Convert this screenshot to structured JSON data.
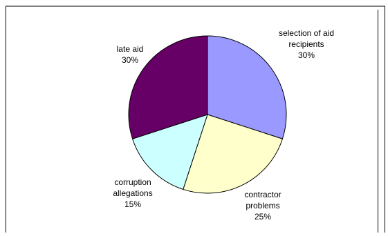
{
  "chart_data": {
    "type": "pie",
    "categories": [
      "selection of aid recipients",
      "contractor problems",
      "corruption allegations",
      "late aid"
    ],
    "values": [
      30,
      25,
      15,
      30
    ],
    "colors": [
      "#9999ff",
      "#ffffcc",
      "#ccffff",
      "#660066"
    ],
    "slice_labels": [
      [
        "selection of aid",
        "recipients",
        "30%"
      ],
      [
        "contractor",
        "problems",
        "25%"
      ],
      [
        "corruption",
        "allegations",
        "15%"
      ],
      [
        "late aid",
        "30%"
      ]
    ],
    "legend": "none",
    "start_angle_deg": 0,
    "direction": "clockwise"
  }
}
